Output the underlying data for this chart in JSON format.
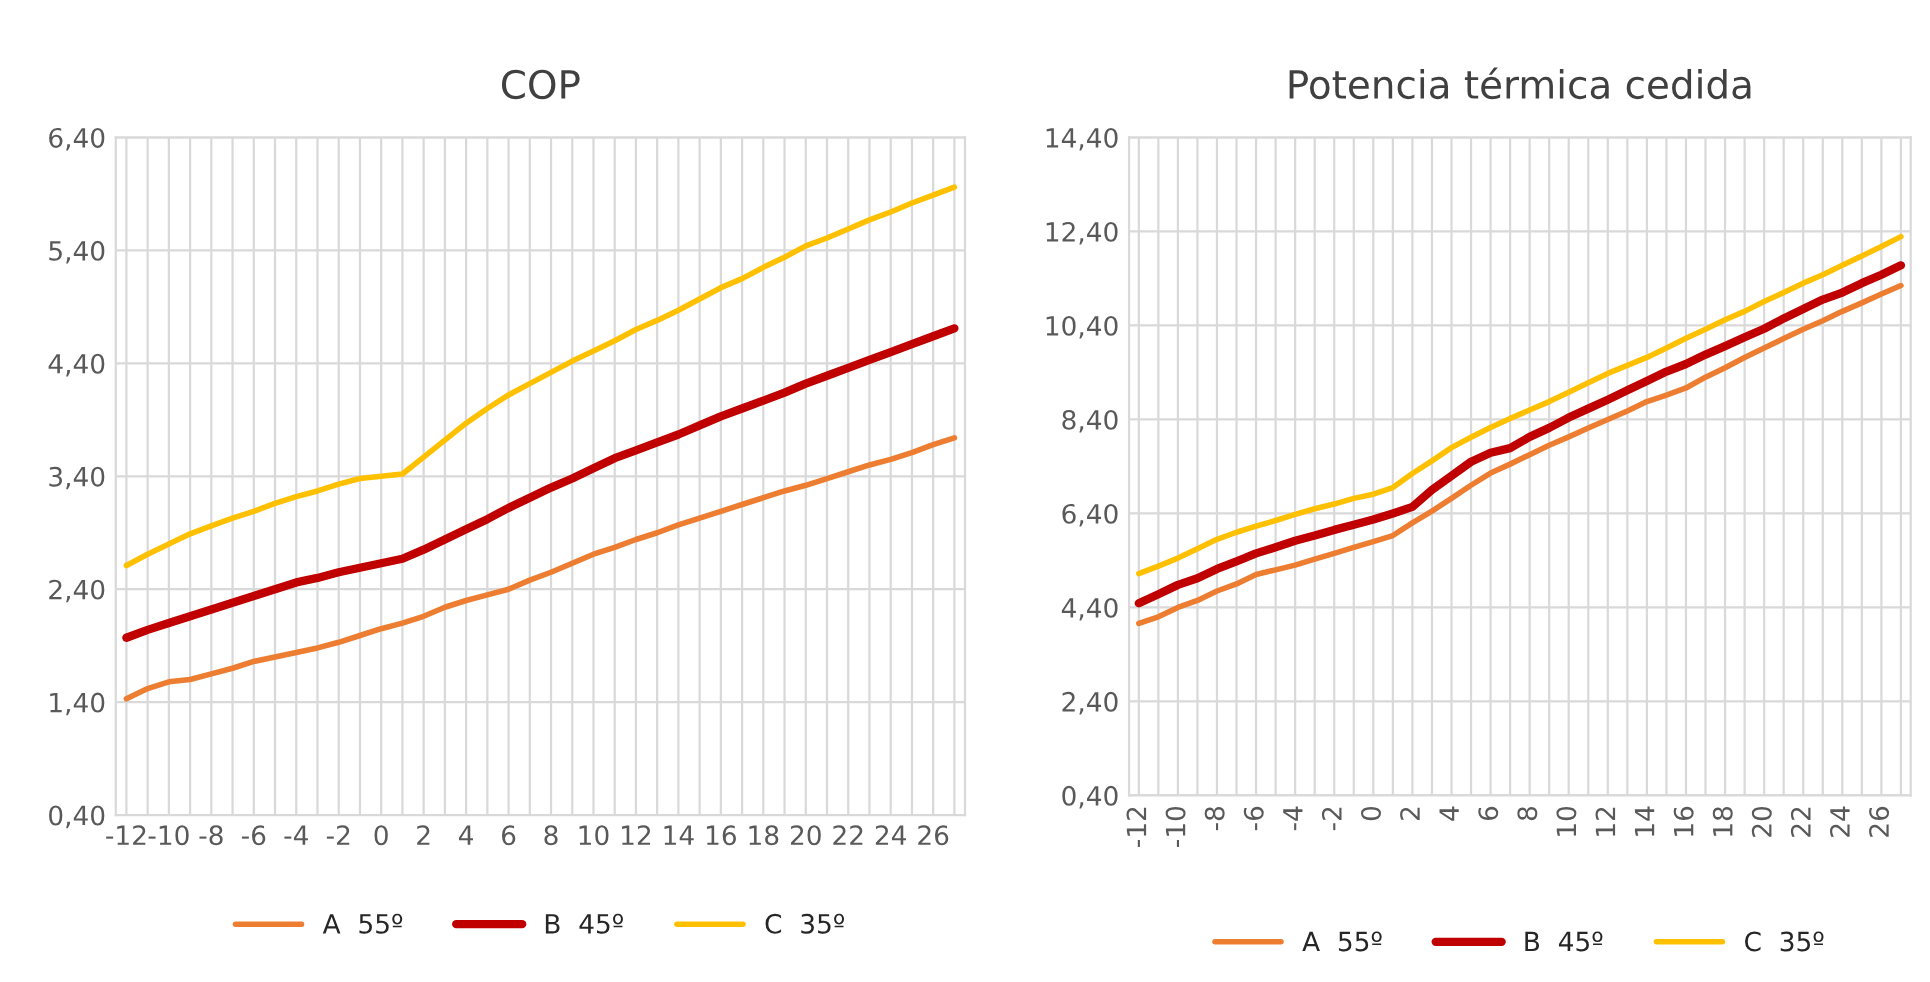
{
  "chart_data": [
    {
      "type": "line",
      "title": "COP",
      "categories": [
        "-12",
        null,
        "-10",
        null,
        "-8",
        null,
        "-6",
        null,
        "-4",
        null,
        "-2",
        null,
        "0",
        null,
        "2",
        null,
        "4",
        null,
        "6",
        null,
        "8",
        null,
        "10",
        null,
        "12",
        null,
        "14",
        null,
        "16",
        null,
        "18",
        null,
        "20",
        null,
        "22",
        null,
        "24",
        null,
        "26",
        null
      ],
      "ylim": [
        0.4,
        6.4
      ],
      "yticks": [
        {
          "value": 0.4,
          "label": "0,40"
        },
        {
          "value": 1.4,
          "label": "1,40"
        },
        {
          "value": 2.4,
          "label": "2,40"
        },
        {
          "value": 3.4,
          "label": "3,40"
        },
        {
          "value": 4.4,
          "label": "4,40"
        },
        {
          "value": 5.4,
          "label": "5,40"
        },
        {
          "value": 6.4,
          "label": "6,40"
        }
      ],
      "grid": true,
      "legend": "bottom",
      "marker": "none",
      "line_style": "solid",
      "series": [
        {
          "name": "A  55º",
          "color": "#ed7d31",
          "values": [
            1.43,
            1.52,
            1.58,
            1.6,
            1.65,
            1.7,
            1.76,
            1.8,
            1.84,
            1.88,
            1.93,
            1.99,
            2.05,
            2.1,
            2.16,
            2.24,
            2.3,
            2.35,
            2.4,
            2.48,
            2.55,
            2.63,
            2.71,
            2.77,
            2.84,
            2.9,
            2.97,
            3.03,
            3.09,
            3.15,
            3.21,
            3.27,
            3.32,
            3.38,
            3.44,
            3.5,
            3.55,
            3.61,
            3.68,
            3.74
          ]
        },
        {
          "name": "B  45º",
          "color": "#c00000",
          "values": [
            1.97,
            2.04,
            2.1,
            2.16,
            2.22,
            2.28,
            2.34,
            2.4,
            2.46,
            2.5,
            2.55,
            2.59,
            2.63,
            2.67,
            2.75,
            2.84,
            2.93,
            3.02,
            3.12,
            3.21,
            3.3,
            3.38,
            3.47,
            3.56,
            3.63,
            3.7,
            3.77,
            3.85,
            3.93,
            4.0,
            4.07,
            4.14,
            4.22,
            4.29,
            4.36,
            4.43,
            4.5,
            4.57,
            4.64,
            4.71
          ]
        },
        {
          "name": "C  35º",
          "color": "#ffc000",
          "values": [
            2.61,
            2.71,
            2.8,
            2.89,
            2.96,
            3.03,
            3.09,
            3.16,
            3.22,
            3.27,
            3.33,
            3.38,
            3.4,
            3.42,
            3.57,
            3.72,
            3.87,
            4.0,
            4.12,
            4.22,
            4.32,
            4.42,
            4.51,
            4.6,
            4.7,
            4.78,
            4.87,
            4.97,
            5.07,
            5.15,
            5.25,
            5.34,
            5.44,
            5.51,
            5.59,
            5.67,
            5.74,
            5.82,
            5.89,
            5.96
          ]
        }
      ]
    },
    {
      "type": "line",
      "title": "Potencia térmica cedida",
      "categories": [
        "-12",
        null,
        "-10",
        null,
        "-8",
        null,
        "-6",
        null,
        "-4",
        null,
        "-2",
        null,
        "0",
        null,
        "2",
        null,
        "4",
        null,
        "6",
        null,
        "8",
        null,
        "10",
        null,
        "12",
        null,
        "14",
        null,
        "16",
        null,
        "18",
        null,
        "20",
        null,
        "22",
        null,
        "24",
        null,
        "26",
        null
      ],
      "ylim": [
        0.4,
        14.4
      ],
      "yticks": [
        {
          "value": 0.4,
          "label": "0,40"
        },
        {
          "value": 2.4,
          "label": "2,40"
        },
        {
          "value": 4.4,
          "label": "4,40"
        },
        {
          "value": 6.4,
          "label": "6,40"
        },
        {
          "value": 8.4,
          "label": "8,40"
        },
        {
          "value": 10.4,
          "label": "10,40"
        },
        {
          "value": 12.4,
          "label": "12,40"
        },
        {
          "value": 14.4,
          "label": "14,40"
        }
      ],
      "grid": true,
      "legend": "bottom",
      "marker": "none",
      "line_style": "solid",
      "series": [
        {
          "name": "A  55º",
          "color": "#ed7d31",
          "values": [
            4.06,
            4.2,
            4.4,
            4.55,
            4.75,
            4.9,
            5.1,
            5.2,
            5.3,
            5.43,
            5.55,
            5.68,
            5.8,
            5.93,
            6.2,
            6.45,
            6.72,
            7.0,
            7.26,
            7.45,
            7.65,
            7.85,
            8.03,
            8.22,
            8.4,
            8.58,
            8.78,
            8.92,
            9.07,
            9.3,
            9.5,
            9.72,
            9.92,
            10.12,
            10.32,
            10.5,
            10.7,
            10.88,
            11.07,
            11.25
          ]
        },
        {
          "name": "B  45º",
          "color": "#c00000",
          "values": [
            4.49,
            4.68,
            4.88,
            5.02,
            5.22,
            5.38,
            5.55,
            5.68,
            5.82,
            5.93,
            6.05,
            6.16,
            6.27,
            6.4,
            6.54,
            6.9,
            7.2,
            7.5,
            7.69,
            7.79,
            8.03,
            8.22,
            8.44,
            8.63,
            8.82,
            9.02,
            9.22,
            9.42,
            9.58,
            9.78,
            9.96,
            10.15,
            10.33,
            10.55,
            10.75,
            10.95,
            11.1,
            11.3,
            11.48,
            11.68
          ]
        },
        {
          "name": "C  35º",
          "color": "#ffc000",
          "values": [
            5.12,
            5.28,
            5.45,
            5.65,
            5.85,
            6.0,
            6.13,
            6.25,
            6.38,
            6.5,
            6.6,
            6.72,
            6.81,
            6.95,
            7.25,
            7.52,
            7.8,
            8.02,
            8.23,
            8.42,
            8.6,
            8.78,
            8.98,
            9.18,
            9.38,
            9.55,
            9.72,
            9.92,
            10.13,
            10.32,
            10.52,
            10.7,
            10.91,
            11.1,
            11.3,
            11.48,
            11.68,
            11.88,
            12.08,
            12.29
          ]
        }
      ]
    }
  ]
}
